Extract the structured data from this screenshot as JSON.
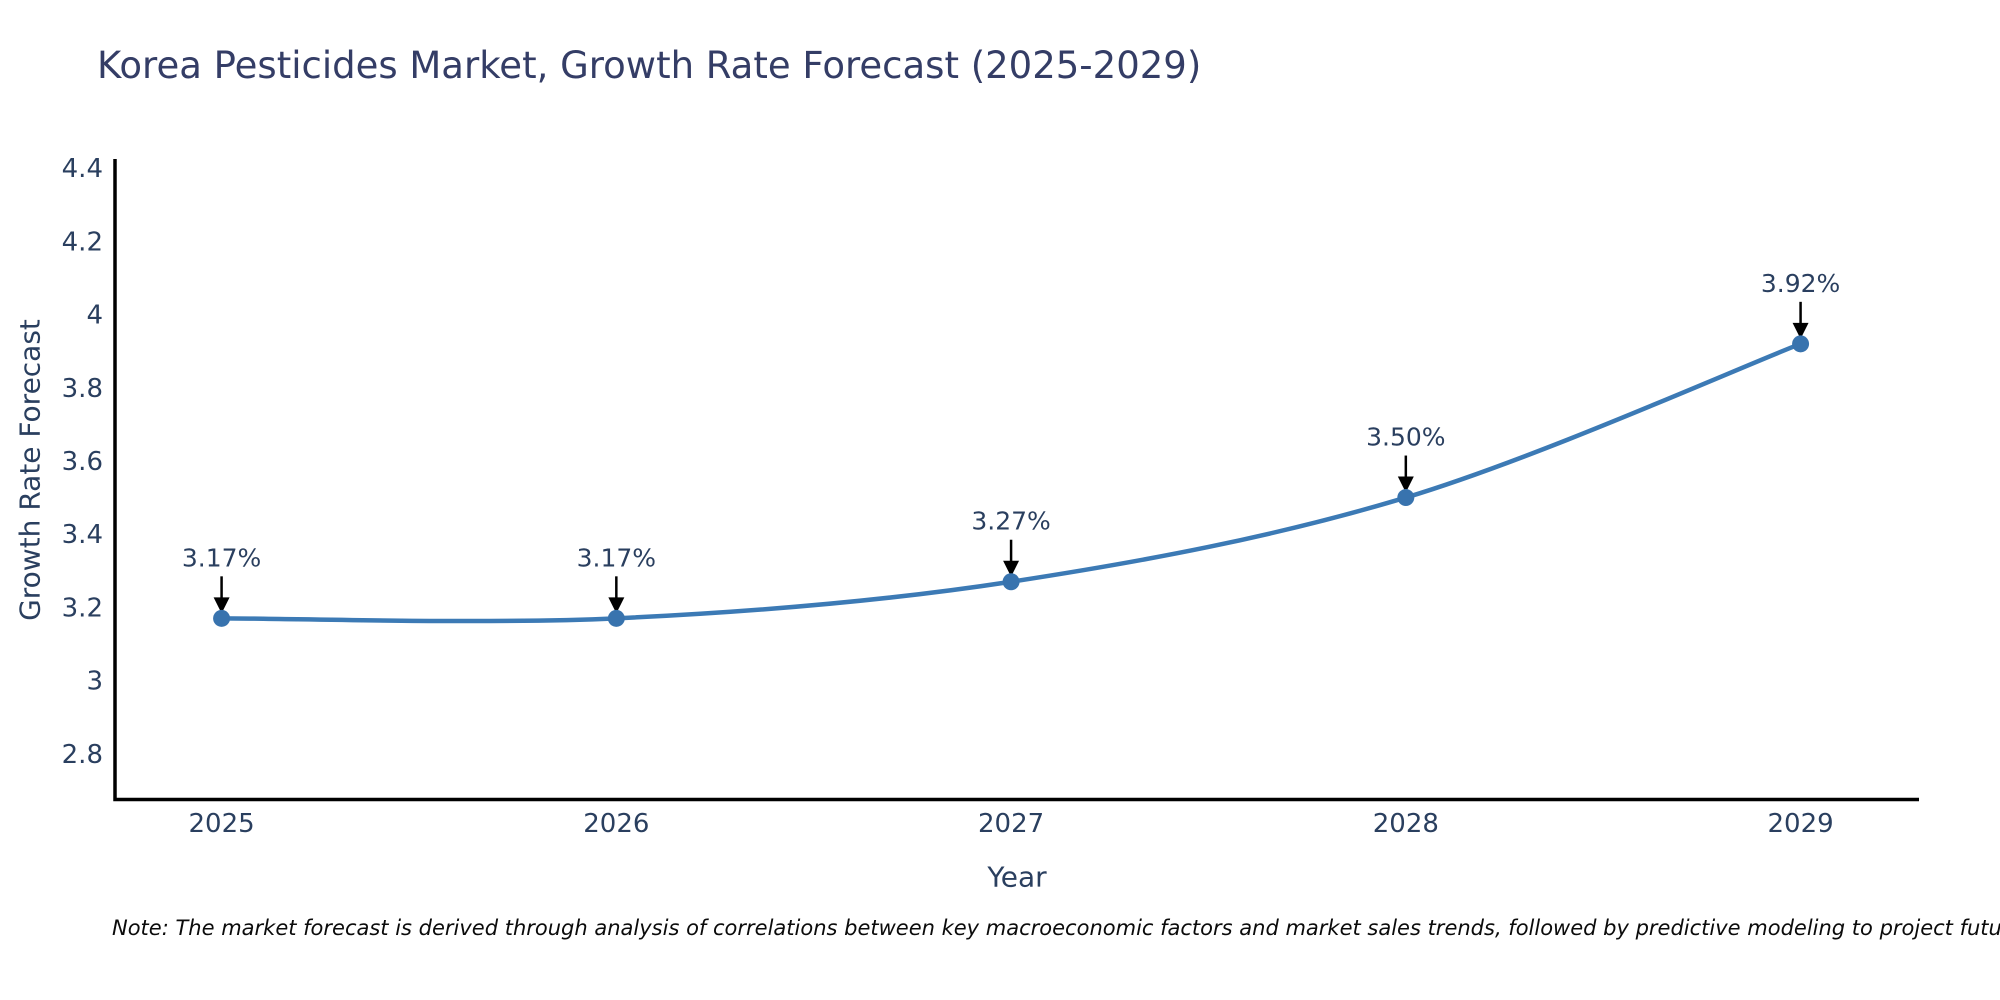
{
  "header": {
    "title": "Korea Pesticides Market, Growth Rate Forecast (2025-2029)"
  },
  "chart_data": {
    "type": "line",
    "line_shape": "spline",
    "x": [
      2025,
      2026,
      2027,
      2028,
      2029
    ],
    "values": [
      3.17,
      3.17,
      3.27,
      3.5,
      3.92
    ],
    "point_labels": [
      "3.17%",
      "3.17%",
      "3.27%",
      "3.50%",
      "3.92%"
    ],
    "xtick_labels": [
      "2025",
      "2026",
      "2027",
      "2028",
      "2029"
    ],
    "yticks": {
      "labels": [
        "4.4",
        "4.2",
        "4",
        "3.8",
        "3.6",
        "3.4",
        "3.2",
        "3",
        "2.8"
      ],
      "values": [
        4.4,
        4.2,
        4.0,
        3.8,
        3.6,
        3.4,
        3.2,
        3.0,
        2.8
      ]
    },
    "title": "Korea Pesticides Market, Growth Rate Forecast (2025-2029)",
    "xlabel": "Year",
    "ylabel": "Growth Rate Forecast",
    "ylim": [
      2.675,
      4.425
    ],
    "xlim": [
      2024.73,
      2029.3
    ],
    "grid": false,
    "legend": "none",
    "annotations": "value labels with black down-arrows above each point",
    "colors": {
      "line": "#3c7ab5",
      "marker": "#3873ae",
      "axis": "#000000",
      "tick_text": "#2a3f5f",
      "title_text": "#343d66",
      "annotation_arrow": "#000000",
      "background": "#ffffff"
    }
  },
  "footnote": {
    "text": "Note: The market forecast is derived through analysis of correlations between key macroeconomic factors and market sales trends, followed by predictive modeling to project future sales"
  }
}
